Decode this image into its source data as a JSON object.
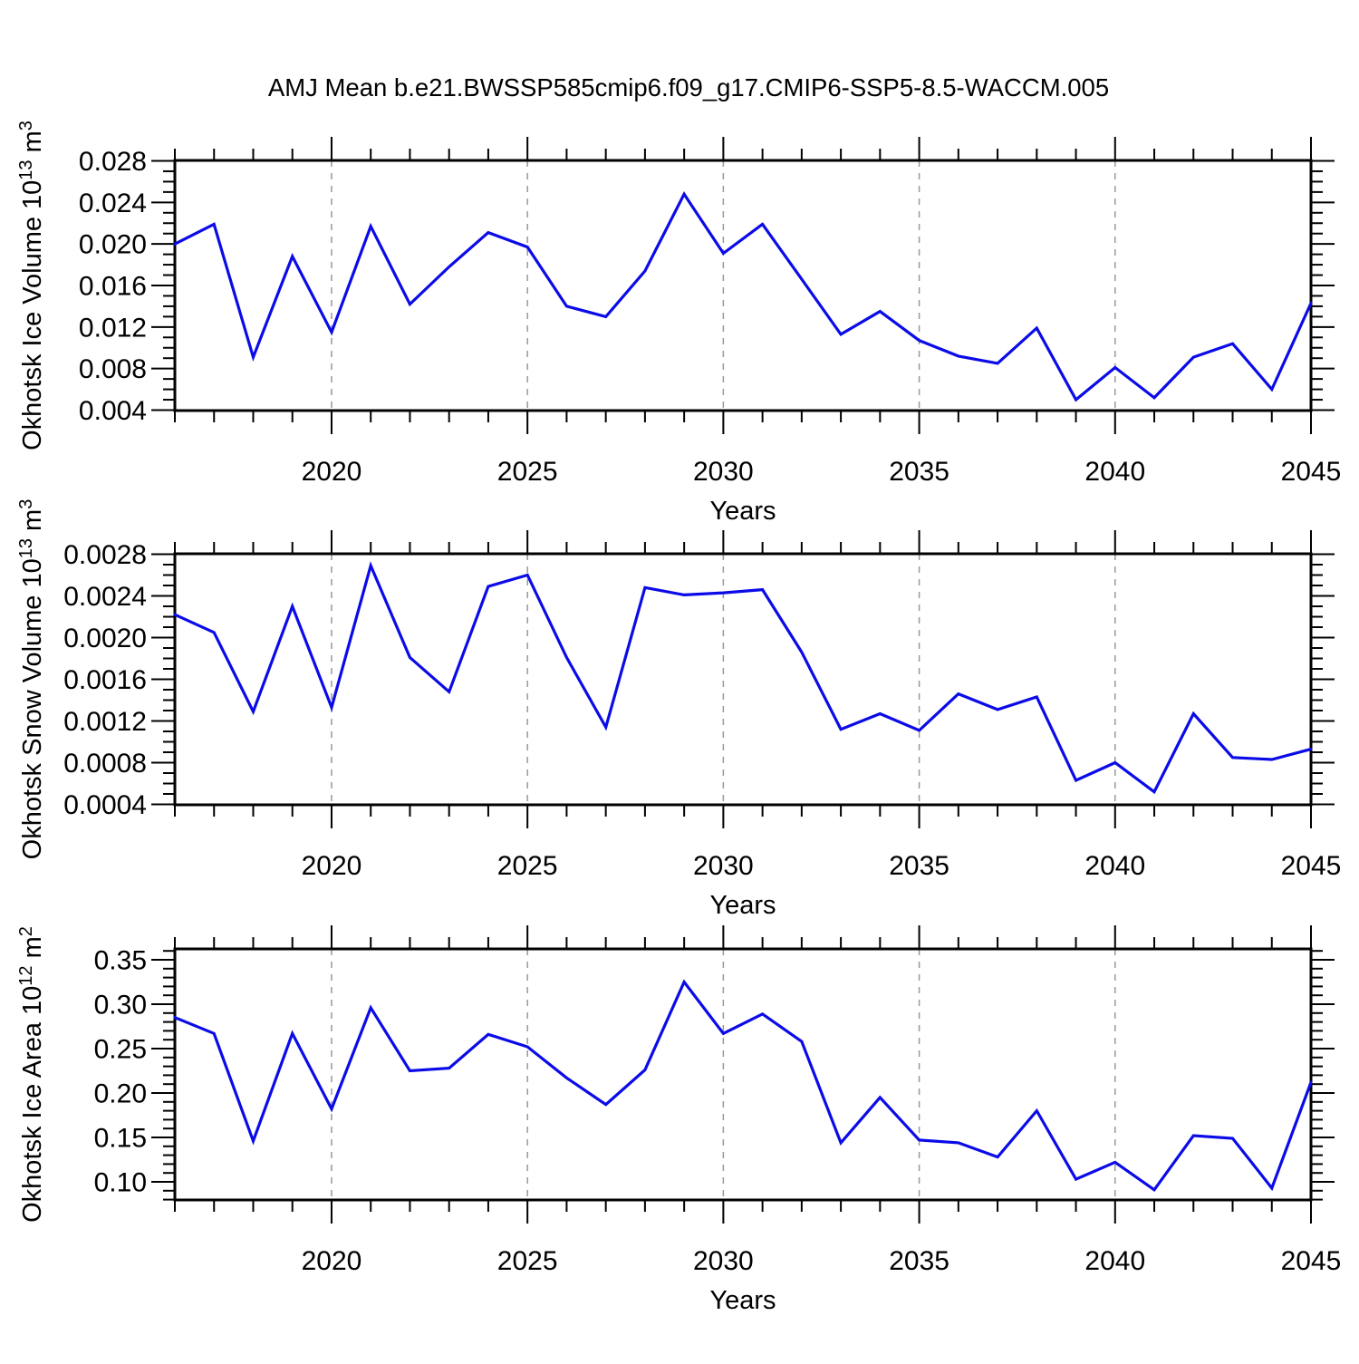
{
  "title": "AMJ Mean b.e21.BWSSP585cmip6.f09_g17.CMIP6-SSP5-8.5-WACCM.005",
  "colors": {
    "line": "#0b0be8",
    "grid": "#999999",
    "axis": "#000000"
  },
  "x_axis": {
    "label": "Years",
    "years": [
      2016,
      2017,
      2018,
      2019,
      2020,
      2021,
      2022,
      2023,
      2024,
      2025,
      2026,
      2027,
      2028,
      2029,
      2030,
      2031,
      2032,
      2033,
      2034,
      2035,
      2036,
      2037,
      2038,
      2039,
      2040,
      2041,
      2042,
      2043,
      2044,
      2045
    ],
    "major_tick_labels": [
      {
        "year": 2020,
        "label": "2020"
      },
      {
        "year": 2025,
        "label": "2025"
      },
      {
        "year": 2030,
        "label": "2030"
      },
      {
        "year": 2035,
        "label": "2035"
      },
      {
        "year": 2040,
        "label": "2040"
      },
      {
        "year": 2045,
        "label": "2045"
      }
    ],
    "gridline_years": [
      2020,
      2025,
      2030,
      2035,
      2040
    ]
  },
  "chart_data": [
    {
      "type": "line",
      "title": "Okhotsk Ice Volume 10^13 m^3",
      "ylabel_parts": [
        {
          "t": "Okhotsk Ice Volume 10"
        },
        {
          "t": "13",
          "sup": true
        },
        {
          "t": " m"
        },
        {
          "t": "3",
          "sup": true
        }
      ],
      "xlabel": "Years",
      "ylim": [
        0.004,
        0.028
      ],
      "yticks": [
        {
          "v": 0.004,
          "label": "0.004"
        },
        {
          "v": 0.008,
          "label": "0.008"
        },
        {
          "v": 0.012,
          "label": "0.012"
        },
        {
          "v": 0.016,
          "label": "0.016"
        },
        {
          "v": 0.02,
          "label": "0.020"
        },
        {
          "v": 0.024,
          "label": "0.024"
        },
        {
          "v": 0.028,
          "label": "0.028"
        }
      ],
      "yminor_step": 0.001,
      "yminor_range": [
        0.004,
        0.028
      ],
      "values": [
        0.02,
        0.0219,
        0.0091,
        0.0188,
        0.0115,
        0.0217,
        0.0142,
        0.0178,
        0.0211,
        0.0197,
        0.014,
        0.013,
        0.0174,
        0.0248,
        0.0191,
        0.0219,
        0.0166,
        0.0113,
        0.0135,
        0.0107,
        0.0092,
        0.0085,
        0.0119,
        0.005,
        0.0081,
        0.0052,
        0.0091,
        0.0104,
        0.006,
        0.0143
      ]
    },
    {
      "type": "line",
      "title": "Okhotsk Snow Volume 10^13 m^3",
      "ylabel_parts": [
        {
          "t": "Okhotsk Snow Volume 10"
        },
        {
          "t": "13",
          "sup": true
        },
        {
          "t": " m"
        },
        {
          "t": "3",
          "sup": true
        }
      ],
      "xlabel": "Years",
      "ylim": [
        0.0004,
        0.0028
      ],
      "yticks": [
        {
          "v": 0.0004,
          "label": "0.0004"
        },
        {
          "v": 0.0008,
          "label": "0.0008"
        },
        {
          "v": 0.0012,
          "label": "0.0012"
        },
        {
          "v": 0.0016,
          "label": "0.0016"
        },
        {
          "v": 0.002,
          "label": "0.0020"
        },
        {
          "v": 0.0024,
          "label": "0.0024"
        },
        {
          "v": 0.0028,
          "label": "0.0028"
        }
      ],
      "yminor_step": 0.0001,
      "yminor_range": [
        0.0004,
        0.0028
      ],
      "values": [
        0.00222,
        0.00205,
        0.00129,
        0.0023,
        0.00133,
        0.00269,
        0.00181,
        0.00148,
        0.00249,
        0.0026,
        0.00181,
        0.00114,
        0.00248,
        0.00241,
        0.00243,
        0.00246,
        0.00186,
        0.00112,
        0.00127,
        0.00111,
        0.00146,
        0.00131,
        0.00143,
        0.00063,
        0.0008,
        0.00052,
        0.00127,
        0.00085,
        0.00083,
        0.00093
      ]
    },
    {
      "type": "line",
      "title": "Okhotsk Ice Area 10^12 m^2",
      "ylabel_parts": [
        {
          "t": "Okhotsk Ice Area 10"
        },
        {
          "t": "12",
          "sup": true
        },
        {
          "t": " m"
        },
        {
          "t": "2",
          "sup": true
        }
      ],
      "xlabel": "Years",
      "ylim": [
        0.1,
        0.35
      ],
      "yticks": [
        {
          "v": 0.1,
          "label": "0.10"
        },
        {
          "v": 0.15,
          "label": "0.15"
        },
        {
          "v": 0.2,
          "label": "0.20"
        },
        {
          "v": 0.25,
          "label": "0.25"
        },
        {
          "v": 0.3,
          "label": "0.30"
        },
        {
          "v": 0.35,
          "label": "0.35"
        }
      ],
      "yminor_step": 0.01,
      "yminor_range": [
        0.08,
        0.36
      ],
      "values": [
        0.285,
        0.267,
        0.146,
        0.267,
        0.182,
        0.296,
        0.225,
        0.228,
        0.266,
        0.252,
        0.217,
        0.187,
        0.226,
        0.325,
        0.267,
        0.289,
        0.258,
        0.144,
        0.195,
        0.147,
        0.144,
        0.128,
        0.18,
        0.103,
        0.122,
        0.091,
        0.152,
        0.149,
        0.093,
        0.212
      ]
    }
  ]
}
